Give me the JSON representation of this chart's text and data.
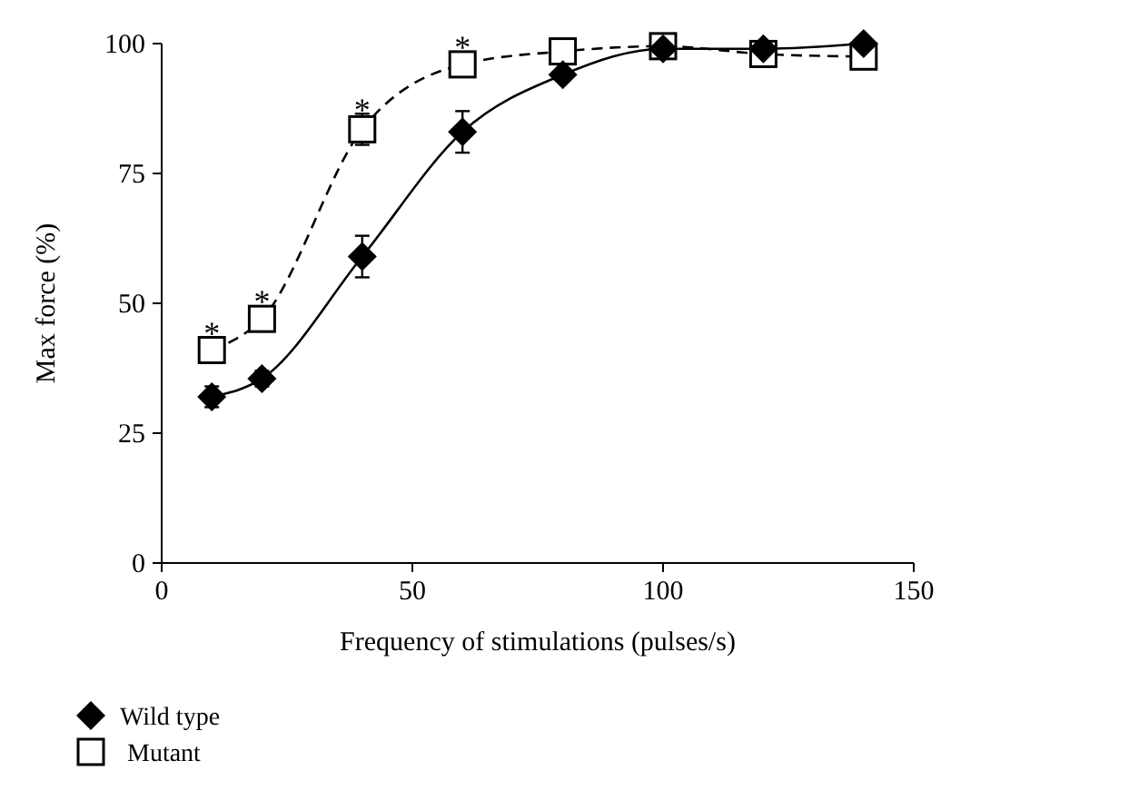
{
  "chart_data": {
    "type": "line",
    "xlabel": "Frequency of stimulations (pulses/s)",
    "ylabel": "Max force (%)",
    "x": [
      10,
      20,
      40,
      60,
      80,
      100,
      120,
      140
    ],
    "series": [
      {
        "name": "Wild type",
        "color": "#000000",
        "marker": "diamond",
        "line_style": "solid",
        "values": [
          32,
          35.5,
          59,
          83,
          94,
          99,
          99,
          100
        ],
        "errors": [
          2,
          1.5,
          4,
          4,
          null,
          null,
          null,
          null
        ]
      },
      {
        "name": "Mutant",
        "color": "#000000",
        "marker": "square",
        "line_style": "dashed",
        "values": [
          41,
          47,
          83.5,
          96,
          98.5,
          99.5,
          98,
          97.5
        ],
        "errors": [
          null,
          2,
          3,
          null,
          null,
          null,
          null,
          null
        ]
      }
    ],
    "annotations": [
      {
        "text": "*",
        "x": 10,
        "y": 45
      },
      {
        "text": "*",
        "x": 20,
        "y": 51
      },
      {
        "text": "*",
        "x": 40,
        "y": 88
      },
      {
        "text": "*",
        "x": 60,
        "y": 100
      }
    ],
    "xlim": [
      0,
      150
    ],
    "xticks": [
      0,
      50,
      100,
      150
    ],
    "ylim": [
      0,
      100
    ],
    "yticks": [
      0,
      25,
      50,
      75,
      100
    ],
    "legend": "bottom left",
    "grid": false
  }
}
